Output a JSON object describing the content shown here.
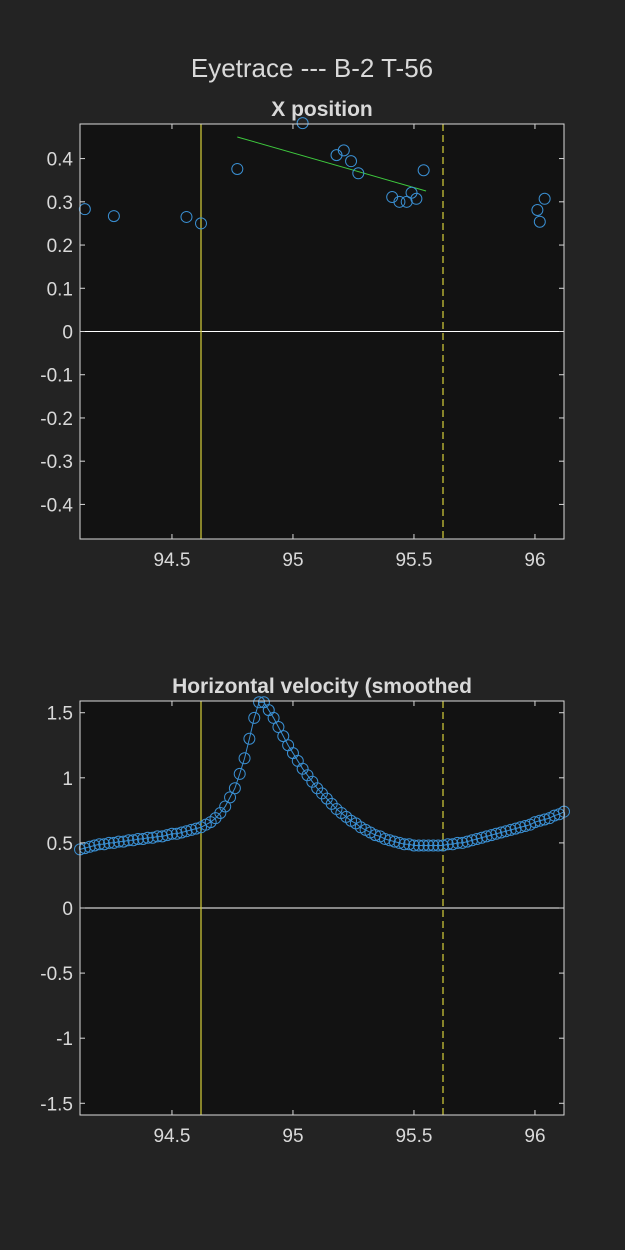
{
  "figure": {
    "title": "Eyetrace ---  B-2 T-56",
    "background": "#232323",
    "axes_background": "#121212",
    "text_color": "#d9d9d9",
    "marker_color": "#3a8fd2",
    "fit_line_color": "#3ec93e",
    "event_line_color": "#c8c237",
    "zero_line_color": "#ffffff"
  },
  "chart_data": [
    {
      "type": "scatter",
      "title": "X position",
      "xlabel": "",
      "ylabel": "",
      "xlim": [
        94.12,
        96.12
      ],
      "ylim": [
        -0.48,
        0.48
      ],
      "xticks": [
        94.5,
        95,
        95.5,
        96
      ],
      "xtick_labels": [
        "94.5",
        "95",
        "95.5",
        "96"
      ],
      "yticks": [
        0.4,
        0.3,
        0.2,
        0.1,
        0,
        -0.1,
        -0.2,
        -0.3,
        -0.4
      ],
      "ytick_labels": [
        "0.4",
        "0.3",
        "0.2",
        "0.1",
        "0",
        "-0.1",
        "-0.2",
        "-0.3",
        "-0.4"
      ],
      "grid": false,
      "zero_line": 0,
      "vlines": [
        {
          "x": 94.62,
          "style": "solid"
        },
        {
          "x": 95.62,
          "style": "dashed"
        }
      ],
      "fit_line": {
        "x": [
          94.77,
          95.55
        ],
        "y": [
          0.45,
          0.325
        ]
      },
      "points": [
        [
          94.14,
          0.283
        ],
        [
          94.26,
          0.267
        ],
        [
          94.56,
          0.265
        ],
        [
          94.62,
          0.25
        ],
        [
          94.77,
          0.376
        ],
        [
          95.04,
          0.482
        ],
        [
          95.18,
          0.408
        ],
        [
          95.21,
          0.419
        ],
        [
          95.24,
          0.394
        ],
        [
          95.27,
          0.366
        ],
        [
          95.41,
          0.311
        ],
        [
          95.44,
          0.3
        ],
        [
          95.47,
          0.3
        ],
        [
          95.49,
          0.321
        ],
        [
          95.51,
          0.307
        ],
        [
          95.54,
          0.373
        ],
        [
          96.01,
          0.281
        ],
        [
          96.02,
          0.254
        ],
        [
          96.04,
          0.307
        ]
      ]
    },
    {
      "type": "line",
      "title": "Horizontal velocity (smoothed",
      "xlabel": "",
      "ylabel": "",
      "xlim": [
        94.12,
        96.12
      ],
      "ylim": [
        -1.59,
        1.59
      ],
      "xticks": [
        94.5,
        95,
        95.5,
        96
      ],
      "xtick_labels": [
        "94.5",
        "95",
        "95.5",
        "96"
      ],
      "yticks": [
        1.5,
        1,
        0.5,
        0,
        -0.5,
        -1,
        -1.5
      ],
      "ytick_labels": [
        "1.5",
        "1",
        "0.5",
        "0",
        "-0.5",
        "-1",
        "-1.5"
      ],
      "grid": false,
      "zero_line": 0,
      "markers": "circle",
      "vlines": [
        {
          "x": 94.62,
          "style": "solid"
        },
        {
          "x": 95.62,
          "style": "dashed"
        }
      ],
      "x": [
        94.12,
        94.14,
        94.16,
        94.18,
        94.2,
        94.22,
        94.24,
        94.26,
        94.28,
        94.3,
        94.32,
        94.34,
        94.36,
        94.38,
        94.4,
        94.42,
        94.44,
        94.46,
        94.48,
        94.5,
        94.52,
        94.54,
        94.56,
        94.58,
        94.6,
        94.62,
        94.64,
        94.66,
        94.68,
        94.7,
        94.72,
        94.74,
        94.76,
        94.78,
        94.8,
        94.82,
        94.84,
        94.86,
        94.88,
        94.9,
        94.92,
        94.94,
        94.96,
        94.98,
        95,
        95.02,
        95.04,
        95.06,
        95.08,
        95.1,
        95.12,
        95.14,
        95.16,
        95.18,
        95.2,
        95.22,
        95.24,
        95.26,
        95.28,
        95.3,
        95.32,
        95.34,
        95.36,
        95.38,
        95.4,
        95.42,
        95.44,
        95.46,
        95.48,
        95.5,
        95.52,
        95.54,
        95.56,
        95.58,
        95.6,
        95.62,
        95.64,
        95.66,
        95.68,
        95.7,
        95.72,
        95.74,
        95.76,
        95.78,
        95.8,
        95.82,
        95.84,
        95.86,
        95.88,
        95.9,
        95.92,
        95.94,
        95.96,
        95.98,
        96,
        96.02,
        96.04,
        96.06,
        96.08,
        96.1,
        96.12
      ],
      "y": [
        0.45,
        0.46,
        0.47,
        0.48,
        0.49,
        0.49,
        0.5,
        0.5,
        0.51,
        0.51,
        0.52,
        0.52,
        0.53,
        0.53,
        0.54,
        0.54,
        0.55,
        0.55,
        0.56,
        0.57,
        0.57,
        0.58,
        0.59,
        0.6,
        0.61,
        0.62,
        0.64,
        0.66,
        0.69,
        0.73,
        0.78,
        0.85,
        0.92,
        1.03,
        1.15,
        1.3,
        1.46,
        1.58,
        1.58,
        1.52,
        1.46,
        1.39,
        1.32,
        1.25,
        1.19,
        1.13,
        1.07,
        1.02,
        0.97,
        0.92,
        0.88,
        0.84,
        0.8,
        0.76,
        0.73,
        0.7,
        0.67,
        0.65,
        0.62,
        0.6,
        0.58,
        0.56,
        0.55,
        0.53,
        0.52,
        0.51,
        0.5,
        0.49,
        0.49,
        0.48,
        0.48,
        0.48,
        0.48,
        0.48,
        0.48,
        0.48,
        0.49,
        0.49,
        0.5,
        0.5,
        0.51,
        0.52,
        0.53,
        0.54,
        0.55,
        0.56,
        0.57,
        0.58,
        0.59,
        0.6,
        0.61,
        0.62,
        0.63,
        0.64,
        0.66,
        0.67,
        0.68,
        0.69,
        0.71,
        0.72,
        0.74
      ]
    }
  ]
}
